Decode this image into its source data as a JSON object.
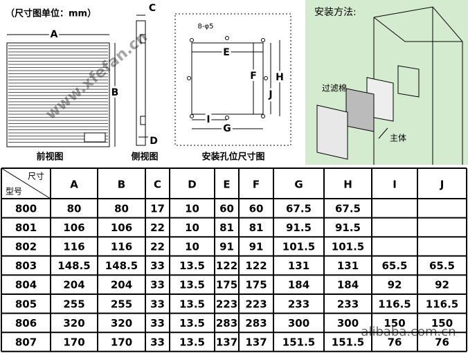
{
  "header": {
    "title": "（尺寸图单位：mm）"
  },
  "diagram": {
    "front_view": {
      "label": "前视图",
      "dims": [
        "A",
        "B"
      ]
    },
    "side_view": {
      "label": "侧视图",
      "dims": [
        "C",
        "D"
      ]
    },
    "hole_view": {
      "label": "安装孔位尺寸图",
      "holes": "8-φ5",
      "dims": [
        "E",
        "F",
        "H",
        "J",
        "I",
        "G"
      ]
    },
    "install": {
      "title": "安装方法:",
      "filter": "过滤棉",
      "body": "主体"
    }
  },
  "watermarks": [
    "www.xfefan.cn",
    "alibaba.com.cn"
  ],
  "table": {
    "corner_top": "尺寸",
    "corner_bottom": "型号",
    "columns": [
      "A",
      "B",
      "C",
      "D",
      "E",
      "F",
      "G",
      "H",
      "I",
      "J"
    ],
    "rows": [
      [
        "800",
        80,
        80,
        17,
        10,
        60,
        60,
        67.5,
        67.5,
        null,
        null
      ],
      [
        "801",
        106,
        106,
        22,
        10,
        81,
        81,
        91.5,
        91.5,
        null,
        null
      ],
      [
        "802",
        116,
        116,
        22,
        10,
        91,
        91,
        101.5,
        101.5,
        null,
        null
      ],
      [
        "803",
        148.5,
        148.5,
        33,
        13.5,
        122,
        122,
        131,
        131,
        65.5,
        65.5
      ],
      [
        "804",
        204,
        204,
        33,
        13.5,
        175,
        175,
        184,
        184,
        92,
        92
      ],
      [
        "805",
        255,
        255,
        33,
        13.5,
        223,
        223,
        233,
        233,
        116.5,
        116.5
      ],
      [
        "806",
        320,
        320,
        33,
        13.5,
        283,
        283,
        300,
        300,
        150,
        150
      ],
      [
        "807",
        170,
        170,
        33,
        13.5,
        137,
        137,
        151.5,
        151.5,
        76,
        76
      ]
    ]
  }
}
